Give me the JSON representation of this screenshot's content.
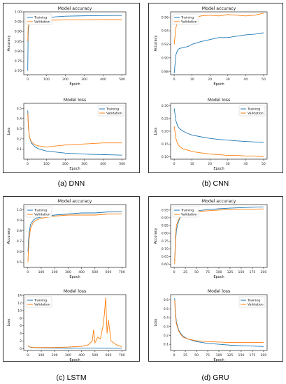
{
  "captions": [
    "(a) DNN",
    "(b) CNN",
    "(c) LSTM",
    "(d) GRU"
  ],
  "colors": {
    "training": "#1f77b4",
    "validation": "#ff7f0e"
  },
  "chart_data": [
    {
      "id": "dnn-acc",
      "type": "line",
      "title": "Model accuracy",
      "xlabel": "Epoch",
      "ylabel": "Accuracy",
      "xlim": [
        -20,
        520
      ],
      "ylim": [
        0.68,
        1.0
      ],
      "xticks": [
        0,
        100,
        200,
        300,
        400,
        500
      ],
      "yticks": [
        0.7,
        0.75,
        0.8,
        0.85,
        0.9,
        0.95,
        1.0
      ],
      "ytick_labels": [
        "0.70",
        "0.75",
        "0.80",
        "0.85",
        "0.90",
        "0.95",
        "1.00"
      ],
      "legend": "top-left",
      "series": [
        {
          "name": "Training",
          "x": [
            1,
            3,
            5,
            10,
            20,
            50,
            100,
            150,
            200,
            300,
            400,
            500
          ],
          "y": [
            0.7,
            0.88,
            0.92,
            0.945,
            0.955,
            0.962,
            0.97,
            0.975,
            0.978,
            0.98,
            0.981,
            0.982
          ]
        },
        {
          "name": "Validation",
          "x": [
            1,
            3,
            5,
            10,
            20,
            50,
            100,
            150,
            200,
            300,
            400,
            500
          ],
          "y": [
            0.85,
            0.92,
            0.93,
            0.94,
            0.95,
            0.955,
            0.958,
            0.958,
            0.959,
            0.959,
            0.96,
            0.96
          ]
        }
      ]
    },
    {
      "id": "dnn-loss",
      "type": "line",
      "title": "Model loss",
      "xlabel": "Epoch",
      "ylabel": "Loss",
      "xlim": [
        -20,
        520
      ],
      "ylim": [
        0.0,
        0.55
      ],
      "xticks": [
        0,
        100,
        200,
        300,
        400,
        500
      ],
      "yticks": [
        0.1,
        0.2,
        0.3,
        0.4,
        0.5
      ],
      "ytick_labels": [
        "0.1",
        "0.2",
        "0.3",
        "0.4",
        "0.5"
      ],
      "legend": "top-right",
      "series": [
        {
          "name": "Training",
          "x": [
            1,
            5,
            10,
            20,
            40,
            60,
            100,
            150,
            200,
            300,
            400,
            500
          ],
          "y": [
            0.48,
            0.3,
            0.22,
            0.16,
            0.12,
            0.1,
            0.08,
            0.07,
            0.06,
            0.05,
            0.045,
            0.04
          ]
        },
        {
          "name": "Validation",
          "x": [
            1,
            5,
            10,
            20,
            40,
            60,
            100,
            150,
            200,
            300,
            400,
            500
          ],
          "y": [
            0.45,
            0.3,
            0.22,
            0.17,
            0.14,
            0.13,
            0.12,
            0.13,
            0.14,
            0.15,
            0.16,
            0.16
          ]
        }
      ]
    },
    {
      "id": "cnn-acc",
      "type": "line",
      "title": "Model accuracy",
      "xlabel": "Epoch",
      "ylabel": "Accuracy",
      "xlim": [
        -2,
        52
      ],
      "ylim": [
        0.875,
        0.968
      ],
      "xticks": [
        0,
        10,
        20,
        30,
        40,
        50
      ],
      "yticks": [
        0.88,
        0.9,
        0.92,
        0.94,
        0.96
      ],
      "ytick_labels": [
        "0.88",
        "0.90",
        "0.92",
        "0.94",
        "0.96"
      ],
      "legend": "top-left",
      "series": [
        {
          "name": "Training",
          "x": [
            0,
            1,
            2,
            3,
            5,
            8,
            10,
            15,
            20,
            25,
            30,
            35,
            40,
            45,
            50
          ],
          "y": [
            0.877,
            0.905,
            0.912,
            0.914,
            0.915,
            0.917,
            0.92,
            0.924,
            0.927,
            0.93,
            0.93,
            0.932,
            0.934,
            0.935,
            0.937
          ]
        },
        {
          "name": "Validation",
          "x": [
            0,
            1,
            2,
            3,
            5,
            8,
            10,
            15,
            20,
            25,
            30,
            35,
            40,
            45,
            50
          ],
          "y": [
            0.92,
            0.945,
            0.955,
            0.958,
            0.95,
            0.96,
            0.958,
            0.962,
            0.963,
            0.962,
            0.964,
            0.963,
            0.962,
            0.963,
            0.966
          ]
        }
      ]
    },
    {
      "id": "cnn-loss",
      "type": "line",
      "title": "Model loss",
      "xlabel": "Epoch",
      "ylabel": "Loss",
      "xlim": [
        -2,
        52
      ],
      "ylim": [
        0.09,
        0.31
      ],
      "xticks": [
        0,
        10,
        20,
        30,
        40,
        50
      ],
      "yticks": [
        0.1,
        0.15,
        0.2,
        0.25,
        0.3
      ],
      "ytick_labels": [
        "0.10",
        "0.15",
        "0.20",
        "0.25",
        "0.30"
      ],
      "legend": "top-right",
      "series": [
        {
          "name": "Training",
          "x": [
            0,
            1,
            2,
            3,
            5,
            8,
            10,
            15,
            20,
            25,
            30,
            35,
            40,
            45,
            50
          ],
          "y": [
            0.29,
            0.24,
            0.22,
            0.21,
            0.2,
            0.19,
            0.185,
            0.178,
            0.172,
            0.168,
            0.165,
            0.162,
            0.16,
            0.158,
            0.155
          ]
        },
        {
          "name": "Validation",
          "x": [
            0,
            1,
            2,
            3,
            5,
            8,
            10,
            15,
            20,
            25,
            30,
            35,
            40,
            45,
            50
          ],
          "y": [
            0.22,
            0.17,
            0.15,
            0.14,
            0.13,
            0.125,
            0.12,
            0.115,
            0.11,
            0.108,
            0.105,
            0.105,
            0.103,
            0.102,
            0.1
          ]
        }
      ]
    },
    {
      "id": "lstm-acc",
      "type": "line",
      "title": "Model accuracy",
      "xlabel": "Epoch",
      "ylabel": "Accuracy",
      "xlim": [
        -30,
        730
      ],
      "ylim": [
        0.45,
        1.05
      ],
      "xticks": [
        0,
        100,
        200,
        300,
        400,
        500,
        600,
        700
      ],
      "yticks": [
        0.5,
        0.6,
        0.7,
        0.8,
        0.9,
        1.0
      ],
      "ytick_labels": [
        "0.5",
        "0.6",
        "0.7",
        "0.8",
        "0.9",
        "1.0"
      ],
      "legend": "top-left",
      "series": [
        {
          "name": "Training",
          "x": [
            1,
            5,
            10,
            20,
            40,
            60,
            100,
            200,
            300,
            400,
            500,
            600,
            700
          ],
          "y": [
            0.6,
            0.7,
            0.78,
            0.86,
            0.9,
            0.92,
            0.93,
            0.95,
            0.96,
            0.97,
            0.97,
            0.98,
            0.98
          ]
        },
        {
          "name": "Validation",
          "x": [
            1,
            5,
            10,
            20,
            40,
            60,
            100,
            200,
            300,
            400,
            500,
            600,
            700
          ],
          "y": [
            0.5,
            0.62,
            0.72,
            0.82,
            0.88,
            0.9,
            0.92,
            0.94,
            0.95,
            0.95,
            0.95,
            0.96,
            0.96
          ]
        }
      ]
    },
    {
      "id": "lstm-loss",
      "type": "line",
      "title": "Model loss",
      "xlabel": "Epoch",
      "ylabel": "Loss",
      "xlim": [
        -30,
        730
      ],
      "ylim": [
        -0.5,
        14.2
      ],
      "xticks": [
        0,
        100,
        200,
        300,
        400,
        500,
        600,
        700
      ],
      "yticks": [
        0,
        2,
        4,
        6,
        8,
        10,
        12,
        14
      ],
      "ytick_labels": [
        "0",
        "2",
        "4",
        "6",
        "8",
        "10",
        "12",
        "14"
      ],
      "legend": "top-left",
      "series": [
        {
          "name": "Training",
          "x": [
            1,
            10,
            20,
            50,
            100,
            200,
            300,
            400,
            500,
            600,
            700
          ],
          "y": [
            0.8,
            0.5,
            0.35,
            0.25,
            0.2,
            0.15,
            0.12,
            0.1,
            0.1,
            0.08,
            0.08
          ]
        },
        {
          "name": "Validation",
          "x": [
            1,
            10,
            20,
            50,
            100,
            200,
            300,
            400,
            450,
            480,
            490,
            500,
            520,
            540,
            560,
            570,
            580,
            590,
            600,
            620,
            640,
            660,
            700
          ],
          "y": [
            0.8,
            0.5,
            0.4,
            0.3,
            0.3,
            0.3,
            0.4,
            0.6,
            1.0,
            2.0,
            5.0,
            1.5,
            3.0,
            2.5,
            6.0,
            9.0,
            13.5,
            4.0,
            7.5,
            2.0,
            1.5,
            1.0,
            0.5
          ]
        }
      ]
    },
    {
      "id": "gru-acc",
      "type": "line",
      "title": "Model accuracy",
      "xlabel": "Epoch",
      "ylabel": "Accuracy",
      "xlim": [
        -8,
        208
      ],
      "ylim": [
        0.58,
        0.985
      ],
      "xticks": [
        0,
        25,
        50,
        75,
        100,
        125,
        150,
        175,
        200
      ],
      "yticks": [
        0.6,
        0.65,
        0.7,
        0.75,
        0.8,
        0.85,
        0.9,
        0.95
      ],
      "ytick_labels": [
        "0.60",
        "0.65",
        "0.70",
        "0.75",
        "0.80",
        "0.85",
        "0.90",
        "0.95"
      ],
      "legend": "top-left",
      "series": [
        {
          "name": "Training",
          "x": [
            1,
            3,
            5,
            10,
            15,
            20,
            30,
            50,
            75,
            100,
            125,
            150,
            175,
            200
          ],
          "y": [
            0.62,
            0.75,
            0.82,
            0.88,
            0.91,
            0.92,
            0.935,
            0.945,
            0.952,
            0.958,
            0.962,
            0.965,
            0.968,
            0.97
          ]
        },
        {
          "name": "Validation",
          "x": [
            1,
            3,
            5,
            10,
            15,
            20,
            30,
            50,
            75,
            100,
            125,
            150,
            175,
            200
          ],
          "y": [
            0.6,
            0.78,
            0.85,
            0.89,
            0.91,
            0.92,
            0.93,
            0.94,
            0.945,
            0.95,
            0.952,
            0.955,
            0.955,
            0.957
          ]
        }
      ]
    },
    {
      "id": "gru-loss",
      "type": "line",
      "title": "Model loss",
      "xlabel": "Epoch",
      "ylabel": "Loss",
      "xlim": [
        -8,
        208
      ],
      "ylim": [
        0.03,
        0.66
      ],
      "xticks": [
        0,
        25,
        50,
        75,
        100,
        125,
        150,
        175,
        200
      ],
      "yticks": [
        0.1,
        0.2,
        0.3,
        0.4,
        0.5,
        0.6
      ],
      "ytick_labels": [
        "0.1",
        "0.2",
        "0.3",
        "0.4",
        "0.5",
        "0.6"
      ],
      "legend": "top-right",
      "series": [
        {
          "name": "Training",
          "x": [
            1,
            3,
            5,
            10,
            15,
            20,
            30,
            50,
            75,
            100,
            125,
            150,
            175,
            200
          ],
          "y": [
            0.62,
            0.45,
            0.35,
            0.26,
            0.22,
            0.19,
            0.16,
            0.13,
            0.11,
            0.1,
            0.09,
            0.085,
            0.08,
            0.075
          ]
        },
        {
          "name": "Validation",
          "x": [
            1,
            3,
            5,
            10,
            15,
            20,
            30,
            50,
            75,
            100,
            125,
            150,
            175,
            200
          ],
          "y": [
            0.6,
            0.42,
            0.33,
            0.25,
            0.21,
            0.18,
            0.16,
            0.14,
            0.13,
            0.125,
            0.12,
            0.12,
            0.12,
            0.12
          ]
        }
      ]
    }
  ]
}
